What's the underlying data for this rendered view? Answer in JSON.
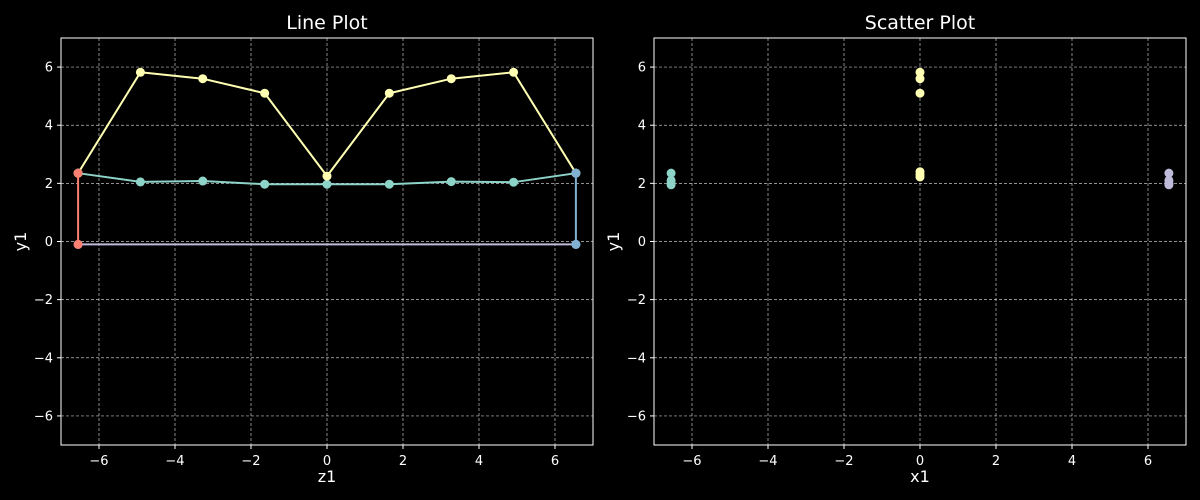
{
  "colors": {
    "background": "#000000",
    "foreground": "#ffffff",
    "teal": "#8dd3c7",
    "yellow": "#ffffb3",
    "lavender": "#bebada",
    "salmon": "#fb8072",
    "blue": "#80b1d3"
  },
  "chart_data": [
    {
      "type": "line",
      "title": "Line Plot",
      "xlabel": "z1",
      "ylabel": "y1",
      "xlim": [
        -7.0,
        7.0
      ],
      "ylim": [
        -7.0,
        7.0
      ],
      "xticks": [
        -6,
        -4,
        -2,
        0,
        2,
        4,
        6
      ],
      "yticks": [
        -6,
        -4,
        -2,
        0,
        2,
        4,
        6
      ],
      "grid": true,
      "series": [
        {
          "color": "#8dd3c7",
          "x": [
            -6.55,
            -4.91,
            -3.27,
            -1.64,
            0.0,
            1.64,
            3.27,
            4.91,
            6.55
          ],
          "y": [
            2.35,
            2.05,
            2.08,
            1.97,
            1.97,
            1.97,
            2.06,
            2.04,
            2.35
          ]
        },
        {
          "color": "#ffffb3",
          "x": [
            -6.55,
            -4.91,
            -3.27,
            -1.64,
            0.0,
            1.64,
            3.27,
            4.91,
            6.55
          ],
          "y": [
            2.35,
            5.82,
            5.6,
            5.1,
            2.25,
            5.1,
            5.6,
            5.82,
            2.35
          ]
        },
        {
          "color": "#bebada",
          "x": [
            -6.55,
            6.55
          ],
          "y": [
            -0.1,
            -0.1
          ]
        },
        {
          "color": "#fb8072",
          "x": [
            -6.55,
            -6.55
          ],
          "y": [
            -0.1,
            2.35
          ]
        },
        {
          "color": "#80b1d3",
          "x": [
            6.55,
            6.55
          ],
          "y": [
            -0.1,
            2.35
          ]
        }
      ]
    },
    {
      "type": "scatter",
      "title": "Scatter Plot",
      "xlabel": "x1",
      "ylabel": "y1",
      "xlim": [
        -7.0,
        7.0
      ],
      "ylim": [
        -7.0,
        7.0
      ],
      "xticks": [
        -6,
        -4,
        -2,
        0,
        2,
        4,
        6
      ],
      "yticks": [
        -6,
        -4,
        -2,
        0,
        2,
        4,
        6
      ],
      "grid": true,
      "series": [
        {
          "color": "#8dd3c7",
          "x": [
            -6.55,
            -6.55,
            -6.55,
            -6.55
          ],
          "y": [
            2.35,
            2.1,
            2.0,
            1.95
          ]
        },
        {
          "color": "#ffffb3",
          "x": [
            0.0,
            0.0,
            0.0,
            0.0,
            0.0,
            0.0
          ],
          "y": [
            5.82,
            5.6,
            5.1,
            2.4,
            2.3,
            2.22
          ]
        },
        {
          "color": "#bebada",
          "x": [
            6.55,
            6.55,
            6.55,
            6.55
          ],
          "y": [
            2.35,
            2.1,
            2.0,
            1.95
          ]
        }
      ]
    }
  ]
}
